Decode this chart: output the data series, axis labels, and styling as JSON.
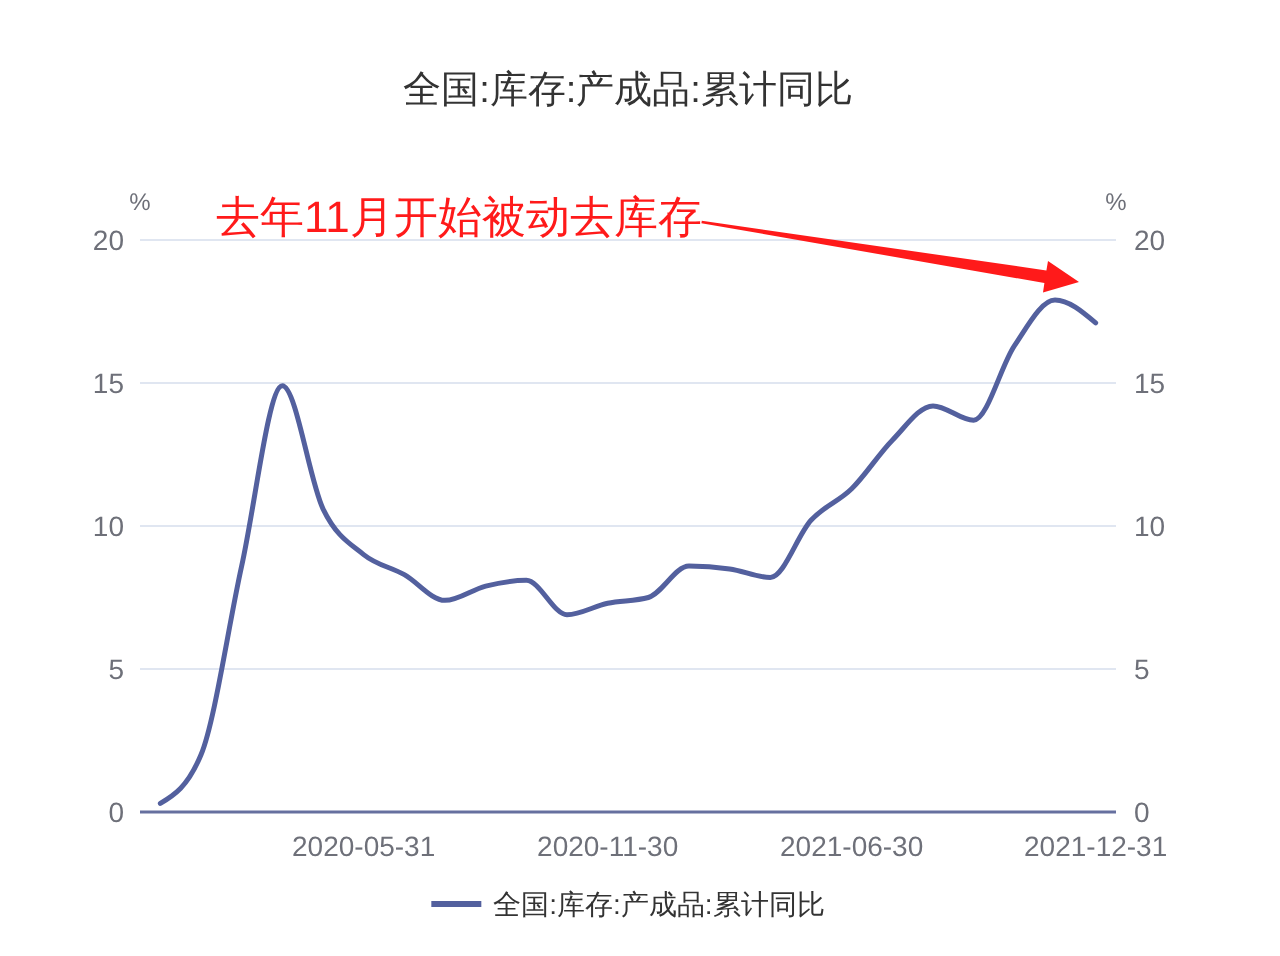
{
  "chart_data": {
    "type": "line",
    "title": "全国:库存:产成品:累计同比",
    "ylabel": "%",
    "y2label": "%",
    "annotations": [
      "去年11月开始被动去库存"
    ],
    "categories": [
      null,
      null,
      null,
      null,
      null,
      "2020-05-31",
      null,
      null,
      null,
      null,
      null,
      "2020-11-30",
      null,
      null,
      null,
      null,
      null,
      "2021-06-30",
      null,
      null,
      null,
      null,
      null,
      "2021-12-31"
    ],
    "series": [
      {
        "name": "全国:库存:产成品:累计同比",
        "color": "#53609e",
        "values": [
          0.3,
          2.0,
          8.6,
          14.9,
          10.6,
          9.0,
          8.3,
          7.4,
          7.9,
          8.1,
          6.9,
          7.3,
          7.5,
          8.6,
          8.5,
          8.2,
          10.2,
          11.3,
          13.0,
          14.2,
          13.7,
          16.3,
          17.9,
          17.1
        ]
      }
    ],
    "ylim": [
      0,
      20
    ],
    "yticks": [
      0,
      5,
      10,
      15,
      20
    ],
    "y2lim": [
      0,
      20
    ],
    "y2ticks": [
      0,
      5,
      10,
      15,
      20
    ],
    "grid": "y",
    "legend": "bottom"
  }
}
